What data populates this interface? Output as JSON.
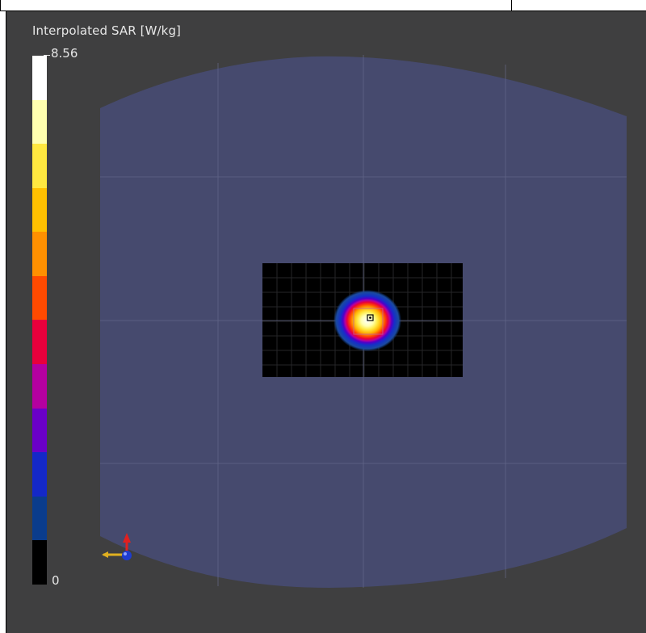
{
  "colorbar": {
    "title": "Interpolated SAR [W/kg]",
    "max_label": "8.56",
    "min_label": "0",
    "colors": [
      "#ffffff",
      "#ffffb0",
      "#ffe840",
      "#ffc000",
      "#ff9000",
      "#ff4a00",
      "#e8003c",
      "#b400a0",
      "#6a00c8",
      "#1428c8",
      "#0a3c8c",
      "#000000"
    ]
  },
  "colors": {
    "background": "#3f3f40",
    "phantom": "#464a6e",
    "scan_area": "#000000"
  },
  "icons": {
    "axes": "axis-triad-icon",
    "peak_marker": "peak-marker-icon"
  }
}
